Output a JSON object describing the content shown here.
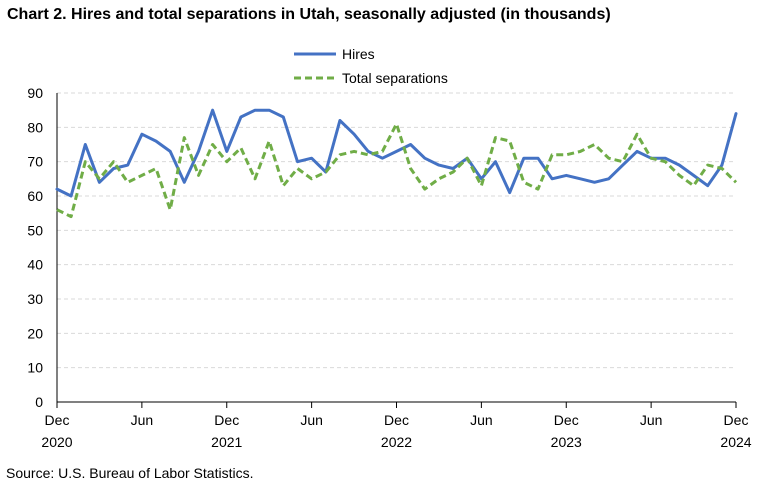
{
  "title": "Chart 2. Hires and total separations in Utah, seasonally adjusted (in thousands)",
  "source": "Source: U.S. Bureau of Labor Statistics.",
  "chart_data": {
    "type": "line",
    "title": "Chart 2. Hires and total separations in Utah, seasonally adjusted (in thousands)",
    "xlabel": "",
    "ylabel": "",
    "ylim": [
      0,
      90
    ],
    "yticks": [
      0,
      10,
      20,
      30,
      40,
      50,
      60,
      70,
      80,
      90
    ],
    "grid": true,
    "legend_position": "top-center",
    "x_tick_labels": [
      {
        "month": "Dec",
        "year": "2020"
      },
      {
        "month": "Jun",
        "year": ""
      },
      {
        "month": "Dec",
        "year": "2021"
      },
      {
        "month": "Jun",
        "year": ""
      },
      {
        "month": "Dec",
        "year": "2022"
      },
      {
        "month": "Jun",
        "year": ""
      },
      {
        "month": "Dec",
        "year": "2023"
      },
      {
        "month": "Jun",
        "year": ""
      },
      {
        "month": "Dec",
        "year": "2024"
      }
    ],
    "x_tick_indices": [
      0,
      6,
      12,
      18,
      24,
      30,
      36,
      42,
      48
    ],
    "x_start": "Dec 2020",
    "x_end": "Dec 2024",
    "series": [
      {
        "name": "Hires",
        "color": "#4472c4",
        "style": "solid",
        "values": [
          62,
          60,
          75,
          64,
          68,
          69,
          78,
          76,
          73,
          64,
          73,
          85,
          73,
          83,
          85,
          85,
          83,
          70,
          71,
          67,
          82,
          78,
          73,
          71,
          73,
          75,
          71,
          69,
          68,
          71,
          65,
          70,
          61,
          71,
          71,
          65,
          66,
          65,
          64,
          65,
          69,
          73,
          71,
          71,
          69,
          66,
          63,
          69,
          84
        ]
      },
      {
        "name": "Total separations",
        "color": "#70ad47",
        "style": "dashed",
        "values": [
          56,
          54,
          70,
          65,
          70,
          64,
          66,
          68,
          56,
          77,
          66,
          75,
          70,
          74,
          65,
          76,
          63,
          68,
          65,
          67,
          72,
          73,
          72,
          73,
          81,
          68,
          62,
          65,
          67,
          71,
          63,
          77,
          76,
          64,
          62,
          72,
          72,
          73,
          75,
          71,
          70,
          78,
          71,
          70,
          66,
          63,
          69,
          68,
          64
        ]
      }
    ]
  }
}
